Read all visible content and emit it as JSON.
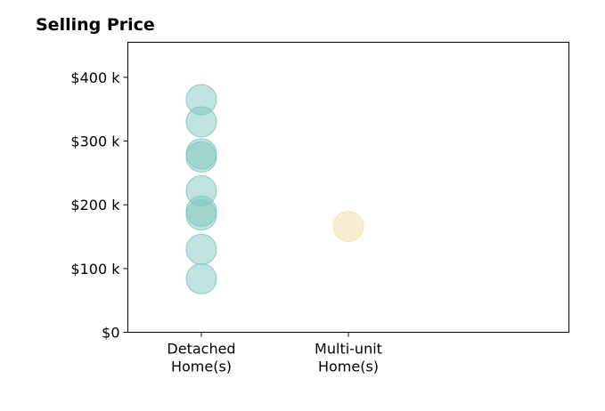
{
  "chart_data": {
    "type": "scatter",
    "title": "Selling Price",
    "xlabel": "",
    "ylabel": "",
    "categories": [
      "Detached\nHome(s)",
      "Multi-unit\nHome(s)"
    ],
    "x_range": [
      -0.5,
      2.5
    ],
    "ylim": [
      0,
      455000
    ],
    "y_ticks": [
      {
        "value": 0,
        "label": "$0"
      },
      {
        "value": 100000,
        "label": "$100 k"
      },
      {
        "value": 200000,
        "label": "$200 k"
      },
      {
        "value": 300000,
        "label": "$300 k"
      },
      {
        "value": 400000,
        "label": "$400 k"
      }
    ],
    "grid": false,
    "legend": "none",
    "series": [
      {
        "category_index": 0,
        "color": "#7fc8c0",
        "opacity": 0.5,
        "values": [
          365000,
          330000,
          280000,
          275000,
          222000,
          190000,
          184000,
          130000,
          84000
        ]
      },
      {
        "category_index": 1,
        "color": "#f5e0b3",
        "opacity": 0.6,
        "values": [
          166000
        ]
      }
    ]
  }
}
